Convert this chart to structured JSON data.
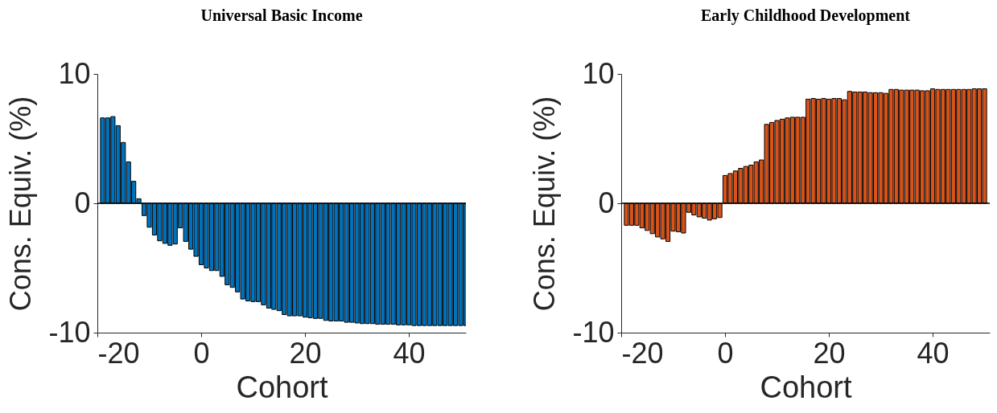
{
  "chart_data": [
    {
      "type": "bar",
      "title": "Universal Basic Income",
      "xlabel": "Cohort",
      "ylabel": "Cons. Equiv. (%)",
      "color": "#0072bd",
      "x": [
        -19,
        -18,
        -17,
        -16,
        -15,
        -14,
        -13,
        -12,
        -11,
        -10,
        -9,
        -8,
        -7,
        -6,
        -5,
        -4,
        -3,
        -2,
        -1,
        0,
        1,
        2,
        3,
        4,
        5,
        6,
        7,
        8,
        9,
        10,
        11,
        12,
        13,
        14,
        15,
        16,
        17,
        18,
        19,
        20,
        21,
        22,
        23,
        24,
        25,
        26,
        27,
        28,
        29,
        30,
        31,
        32,
        33,
        34,
        35,
        36,
        37,
        38,
        39,
        40,
        41,
        42,
        43,
        44,
        45,
        46,
        47,
        48,
        49,
        50,
        51
      ],
      "values": [
        6.6,
        6.6,
        6.7,
        6.0,
        4.7,
        3.2,
        1.7,
        0.35,
        -0.95,
        -1.85,
        -2.45,
        -2.9,
        -3.1,
        -3.25,
        -3.15,
        -1.9,
        -2.95,
        -3.55,
        -4.1,
        -4.75,
        -5.0,
        -5.2,
        -5.2,
        -5.65,
        -6.3,
        -6.5,
        -6.85,
        -7.4,
        -7.55,
        -7.6,
        -7.6,
        -7.85,
        -8.1,
        -8.2,
        -8.3,
        -8.6,
        -8.7,
        -8.7,
        -8.7,
        -8.8,
        -8.85,
        -8.9,
        -8.9,
        -9.05,
        -9.1,
        -9.1,
        -9.1,
        -9.2,
        -9.2,
        -9.25,
        -9.3,
        -9.3,
        -9.3,
        -9.35,
        -9.35,
        -9.35,
        -9.35,
        -9.4,
        -9.4,
        -9.4,
        -9.45,
        -9.45,
        -9.45,
        -9.45,
        -9.45,
        -9.45,
        -9.45,
        -9.45,
        -9.45,
        -9.45,
        -9.45
      ],
      "xlim": [
        -20,
        51
      ],
      "ylim": [
        -10,
        10
      ],
      "xticks": [
        -20,
        0,
        20,
        40
      ],
      "yticks": [
        -10,
        0,
        10
      ],
      "ref_lines": [
        {
          "axis": "y",
          "value": 0,
          "color": "#000000"
        }
      ]
    },
    {
      "type": "bar",
      "title": "Early Childhood Development",
      "xlabel": "Cohort",
      "ylabel": "Cons. Equiv. (%)",
      "color": "#d95319",
      "x": [
        -19,
        -18,
        -17,
        -16,
        -15,
        -14,
        -13,
        -12,
        -11,
        -10,
        -9,
        -8,
        -7,
        -6,
        -5,
        -4,
        -3,
        -2,
        -1,
        0,
        1,
        2,
        3,
        4,
        5,
        6,
        7,
        8,
        9,
        10,
        11,
        12,
        13,
        14,
        15,
        16,
        17,
        18,
        19,
        20,
        21,
        22,
        23,
        24,
        25,
        26,
        27,
        28,
        29,
        30,
        31,
        32,
        33,
        34,
        35,
        36,
        37,
        38,
        39,
        40,
        41,
        42,
        43,
        44,
        45,
        46,
        47,
        48,
        49,
        50
      ],
      "values": [
        -1.7,
        -1.7,
        -1.7,
        -1.9,
        -2.1,
        -2.35,
        -2.6,
        -2.75,
        -2.95,
        -2.15,
        -2.2,
        -2.3,
        -0.7,
        -0.9,
        -1.05,
        -1.15,
        -1.3,
        -1.2,
        -1.1,
        2.15,
        2.3,
        2.5,
        2.7,
        2.85,
        2.95,
        3.2,
        3.35,
        6.1,
        6.25,
        6.4,
        6.5,
        6.6,
        6.65,
        6.65,
        6.65,
        8.05,
        8.1,
        8.05,
        8.1,
        8.05,
        8.1,
        8.1,
        8.0,
        8.65,
        8.6,
        8.6,
        8.6,
        8.55,
        8.55,
        8.55,
        8.5,
        8.8,
        8.8,
        8.75,
        8.75,
        8.75,
        8.75,
        8.7,
        8.7,
        8.85,
        8.8,
        8.8,
        8.8,
        8.8,
        8.8,
        8.8,
        8.8,
        8.85,
        8.85,
        8.85
      ],
      "xlim": [
        -20,
        51
      ],
      "ylim": [
        -10,
        10
      ],
      "xticks": [
        -20,
        0,
        20,
        40
      ],
      "yticks": [
        -10,
        0,
        10
      ],
      "ref_lines": [
        {
          "axis": "y",
          "value": 0,
          "color": "#000000"
        }
      ]
    }
  ]
}
